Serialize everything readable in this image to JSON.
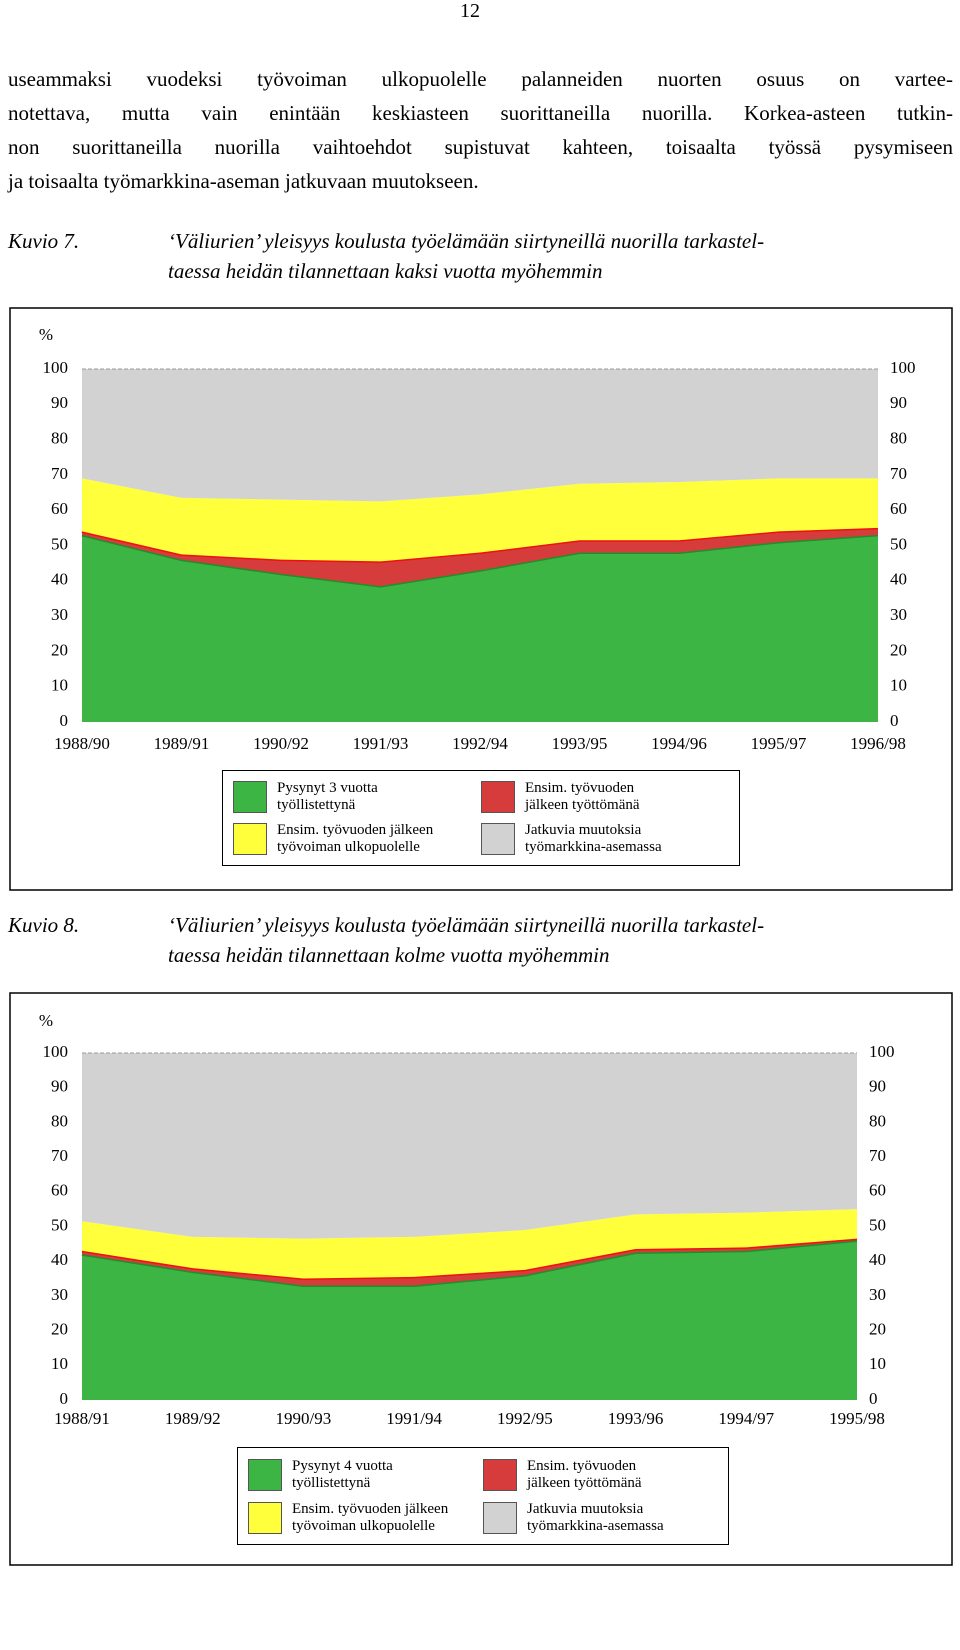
{
  "page_number": "12",
  "paragraph": [
    "useammaksi vuodeksi työvoiman ulkopuolelle palanneiden nuorten osuus on vartee-",
    "notettava, mutta vain enintään keskiasteen suorittaneilla nuorilla. Korkea-asteen tutkin-",
    "non suorittaneilla nuorilla vaihtoehdot supistuvat kahteen, toisaalta työssä pysymiseen",
    "ja toisaalta työmarkkina-aseman jatkuvaan muutokseen."
  ],
  "chart_data": [
    {
      "type": "stacked_area",
      "figure_label": "Kuvio 7.",
      "title": [
        "‘Väliurien’ yleisyys koulusta työelämään siirtyneillä nuorilla tarkastel-",
        "taessa heidän tilannettaan kaksi vuotta myöhemmin"
      ],
      "y_label": "%",
      "ylim": [
        0,
        100
      ],
      "yticks": [
        0,
        10,
        20,
        30,
        40,
        50,
        60,
        70,
        80,
        90,
        100
      ],
      "y_ticks_both_sides": true,
      "categories": [
        "1988/90",
        "1989/91",
        "1990/92",
        "1991/93",
        "1992/94",
        "1993/95",
        "1994/96",
        "1995/97",
        "1996/98"
      ],
      "series": [
        {
          "name": "Pysynyt 3 vuotta\ntyöllistettynä",
          "color": "#3cb544",
          "line_color": "#1f8f2a",
          "values": [
            53,
            46,
            42,
            38.5,
            43,
            48,
            48,
            51,
            53
          ]
        },
        {
          "name": "Ensim. työvuoden\njälkeen työttömänä",
          "color": "#d63c3c",
          "line_color": "#ee1111",
          "values": [
            1,
            1.5,
            4,
            7,
            5,
            3.5,
            3.5,
            3,
            2
          ]
        },
        {
          "name": "Ensim. työvuoden jälkeen\ntyövoiman ulkopuolelle",
          "color": "#ffff3c",
          "values": [
            15,
            16,
            17,
            17,
            16.5,
            16,
            16.5,
            15,
            14
          ]
        },
        {
          "name": "Jatkuvia muutoksia\ntyömarkkina-asemassa",
          "color": "#d2d2d2",
          "values": [
            31,
            36.5,
            37,
            37.5,
            35.5,
            32.5,
            32,
            31,
            31
          ]
        }
      ]
    },
    {
      "type": "stacked_area",
      "figure_label": "Kuvio 8.",
      "title": [
        "‘Väliurien’ yleisyys koulusta työelämään siirtyneillä nuorilla tarkastel-",
        "taessa heidän tilannettaan kolme vuotta myöhemmin"
      ],
      "y_label": "%",
      "ylim": [
        0,
        100
      ],
      "yticks": [
        0,
        10,
        20,
        30,
        40,
        50,
        60,
        70,
        80,
        90,
        100
      ],
      "y_ticks_both_sides": true,
      "categories": [
        "1988/91",
        "1989/92",
        "1990/93",
        "1991/94",
        "1992/95",
        "1993/96",
        "1994/97",
        "1995/98"
      ],
      "series": [
        {
          "name": "Pysynyt 4 vuotta\ntyöllistettynä",
          "color": "#3cb544",
          "line_color": "#1f8f2a",
          "values": [
            42,
            37,
            33,
            33,
            36,
            42.5,
            43,
            46
          ]
        },
        {
          "name": "Ensim. työvuoden\njälkeen työttömänä",
          "color": "#d63c3c",
          "line_color": "#ee1111",
          "values": [
            1,
            1,
            2,
            2.5,
            1.5,
            1,
            1,
            0.5
          ]
        },
        {
          "name": "Ensim. työvuoden jälkeen\ntyövoiman ulkopuolelle",
          "color": "#ffff3c",
          "values": [
            8.5,
            9,
            11.5,
            11.5,
            11.5,
            10,
            10,
            8.5
          ]
        },
        {
          "name": "Jatkuvia muutoksia\ntyömarkkina-asemassa",
          "color": "#d2d2d2",
          "values": [
            48.5,
            53,
            53.5,
            53,
            51,
            46.5,
            46,
            45
          ]
        }
      ]
    }
  ]
}
